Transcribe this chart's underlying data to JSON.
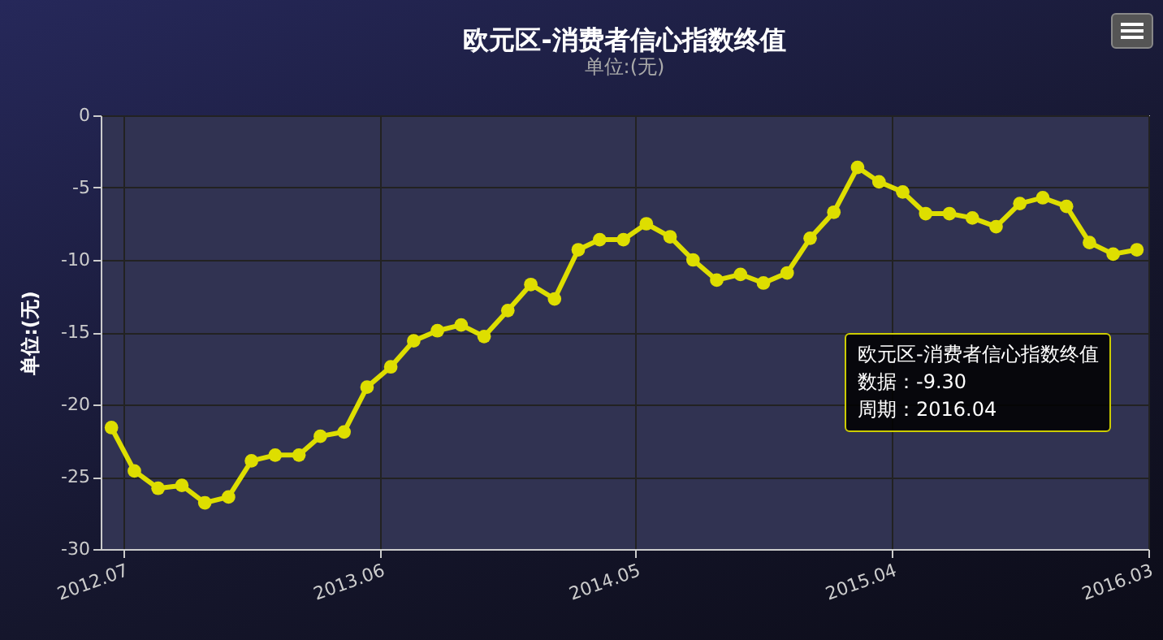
{
  "chart_data": {
    "type": "line",
    "title": "欧元区-消费者信心指数终值",
    "subtitle": "单位:(无)",
    "ylabel": "单位:(无)",
    "x": [
      "2012-06-15",
      "2012-07-15",
      "2012-08-15",
      "2012-09-15",
      "2012-10-15",
      "2012-11-15",
      "2012-12-15",
      "2013-01-15",
      "2013-02-15",
      "2013-03-15",
      "2013-04-15",
      "2013-05-15",
      "2013-06-15",
      "2013-07-15",
      "2013-08-15",
      "2013-09-15",
      "2013-10-15",
      "2013-11-15",
      "2013-12-15",
      "2014-01-15",
      "2014-02-15",
      "2014-03-15",
      "2014-04-15",
      "2014-05-15",
      "2014-06-15",
      "2014-07-15",
      "2014-08-15",
      "2014-09-15",
      "2014-10-15",
      "2014-11-15",
      "2014-12-15",
      "2015-01-15",
      "2015-02-15",
      "2015-03-15",
      "2015-04-15",
      "2015-05-15",
      "2015-06-15",
      "2015-07-15",
      "2015-08-15",
      "2015-09-15",
      "2015-10-15",
      "2015-11-15",
      "2015-12-15",
      "2016-01-15",
      "2016-02-15"
    ],
    "series": [
      {
        "color": "#dede00",
        "values": [
          -21.6,
          -24.6,
          -25.8,
          -25.6,
          -26.8,
          -26.4,
          -23.9,
          -23.5,
          -23.5,
          -22.2,
          -21.9,
          -18.8,
          -17.4,
          -15.6,
          -14.9,
          -14.5,
          -15.3,
          -13.5,
          -11.7,
          -12.7,
          -9.3,
          -8.6,
          -8.6,
          -7.5,
          -8.4,
          -10.0,
          -11.4,
          -11.0,
          -11.6,
          -10.9,
          -8.5,
          -6.7,
          -3.6,
          -4.6,
          -5.3,
          -6.8,
          -6.8,
          -7.1,
          -7.7,
          -6.1,
          -5.7,
          -6.3,
          -8.8,
          -9.6,
          -9.3
        ]
      }
    ],
    "annotations": [
      "欧元区-消费者信心指数终值",
      "数据：-9.30",
      "周期：2016.04"
    ],
    "xlim": [
      "2012-06",
      "2016-03"
    ],
    "xticks": [
      {
        "value": "2012-07",
        "label": "2012.07"
      },
      {
        "value": "2013-06",
        "label": "2013.06"
      },
      {
        "value": "2014-05",
        "label": "2014.05"
      },
      {
        "value": "2015-04",
        "label": "2015.04"
      },
      {
        "value": "2016-03",
        "label": "2016.03"
      }
    ],
    "ylim": [
      -30,
      0
    ],
    "yticks": [
      0,
      -5,
      -10,
      -15,
      -20,
      -25,
      -30
    ],
    "grid": true,
    "marker": "circle",
    "line_style": "solid"
  }
}
